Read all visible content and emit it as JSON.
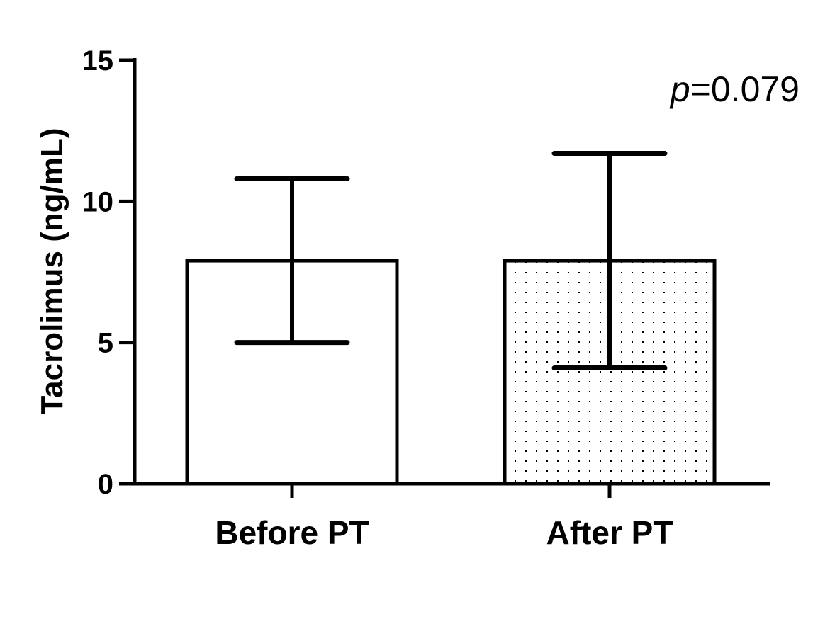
{
  "chart_data": {
    "type": "bar",
    "categories": [
      "Before PT",
      "After PT"
    ],
    "values": [
      7.9,
      7.9
    ],
    "error_upper": [
      10.8,
      11.7
    ],
    "error_lower": [
      5.0,
      4.1
    ],
    "fills": [
      "plain",
      "dotted"
    ],
    "ylabel": "Tacrolimus (ng/mL)",
    "xlabel": "",
    "ylim": [
      0,
      15
    ],
    "yticks": [
      "0",
      "5",
      "10",
      "15"
    ],
    "annotation": {
      "italic": "p",
      "rest": "=0.079"
    },
    "grid": false,
    "colors": {
      "stroke": "#000000",
      "background": "#ffffff",
      "dots": "#000000"
    }
  }
}
